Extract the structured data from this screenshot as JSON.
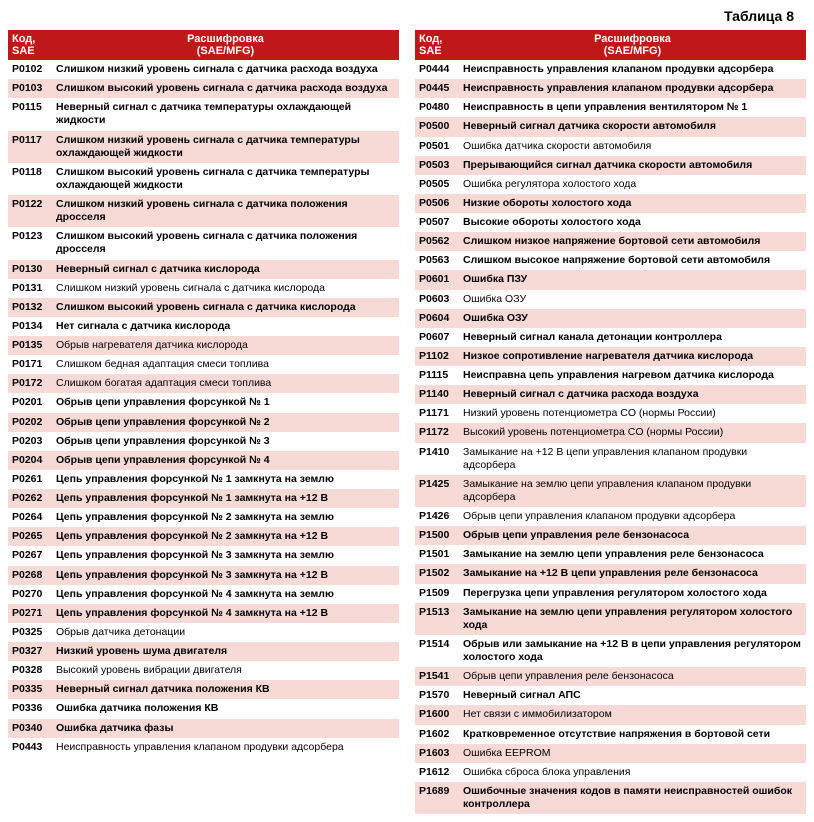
{
  "title": "Таблица 8",
  "header": {
    "code_line1": "Код,",
    "code_line2": "SAE",
    "desc_line1": "Расшифровка",
    "desc_line2": "(SAE/MFG)"
  },
  "colors": {
    "header_bg": "#c01818",
    "header_text": "#ffffff",
    "alt_bg": "#f7d9d5",
    "bg": "#ffffff"
  },
  "left": [
    {
      "code": "P0102",
      "desc": "Слишком низкий уровень сигнала с датчика расхода воздуха",
      "bold": true,
      "alt": false
    },
    {
      "code": "P0103",
      "desc": "Слишком высокий уровень сигнала с датчика расхода воздуха",
      "bold": true,
      "alt": true
    },
    {
      "code": "P0115",
      "desc": "Неверный сигнал с датчика температуры охлаждающей жидкости",
      "bold": true,
      "alt": false
    },
    {
      "code": "P0117",
      "desc": "Слишком низкий уровень сигнала с датчика температуры охлаждающей жидкости",
      "bold": true,
      "alt": true
    },
    {
      "code": "P0118",
      "desc": "Слишком высокий уровень сигнала с датчика температуры охлаждающей жидкости",
      "bold": true,
      "alt": false
    },
    {
      "code": "P0122",
      "desc": "Слишком низкий уровень сигнала с датчика положения дросселя",
      "bold": true,
      "alt": true
    },
    {
      "code": "P0123",
      "desc": "Слишком высокий уровень сигнала с датчика положения дросселя",
      "bold": true,
      "alt": false
    },
    {
      "code": "P0130",
      "desc": "Неверный сигнал с датчика кислорода",
      "bold": true,
      "alt": true
    },
    {
      "code": "P0131",
      "desc": "Слишком низкий уровень сигнала с датчика кислорода",
      "bold": false,
      "alt": false
    },
    {
      "code": "P0132",
      "desc": "Слишком высокий уровень сигнала с датчика кислорода",
      "bold": true,
      "alt": true
    },
    {
      "code": "P0134",
      "desc": "Нет сигнала с датчика кислорода",
      "bold": true,
      "alt": false
    },
    {
      "code": "P0135",
      "desc": "Обрыв нагревателя датчика кислорода",
      "bold": false,
      "alt": true
    },
    {
      "code": "P0171",
      "desc": "Слишком бедная адаптация смеси топлива",
      "bold": false,
      "alt": false
    },
    {
      "code": "P0172",
      "desc": "Слишком богатая адаптация смеси топлива",
      "bold": false,
      "alt": true
    },
    {
      "code": "P0201",
      "desc": "Обрыв цепи управления форсункой № 1",
      "bold": true,
      "alt": false
    },
    {
      "code": "P0202",
      "desc": "Обрыв цепи управления форсункой № 2",
      "bold": true,
      "alt": true
    },
    {
      "code": "P0203",
      "desc": "Обрыв цепи управления форсункой № 3",
      "bold": true,
      "alt": false
    },
    {
      "code": "P0204",
      "desc": "Обрыв цепи управления форсункой № 4",
      "bold": true,
      "alt": true
    },
    {
      "code": "P0261",
      "desc": "Цепь управления форсункой № 1 замкнута на землю",
      "bold": true,
      "alt": false
    },
    {
      "code": "P0262",
      "desc": "Цепь управления форсункой № 1 замкнута на +12 В",
      "bold": true,
      "alt": true
    },
    {
      "code": "P0264",
      "desc": "Цепь управления форсункой № 2 замкнута на землю",
      "bold": true,
      "alt": false
    },
    {
      "code": "P0265",
      "desc": "Цепь управления форсункой № 2 замкнута на +12 В",
      "bold": true,
      "alt": true
    },
    {
      "code": "P0267",
      "desc": "Цепь управления форсункой № 3 замкнута на землю",
      "bold": true,
      "alt": false
    },
    {
      "code": "P0268",
      "desc": "Цепь управления форсункой № 3 замкнута на +12 В",
      "bold": true,
      "alt": true
    },
    {
      "code": "P0270",
      "desc": "Цепь управления форсункой № 4 замкнута на землю",
      "bold": true,
      "alt": false
    },
    {
      "code": "P0271",
      "desc": "Цепь управления форсункой № 4 замкнута на +12 В",
      "bold": true,
      "alt": true
    },
    {
      "code": "P0325",
      "desc": "Обрыв датчика детонации",
      "bold": false,
      "alt": false
    },
    {
      "code": "P0327",
      "desc": "Низкий уровень шума двигателя",
      "bold": true,
      "alt": true
    },
    {
      "code": "P0328",
      "desc": "Высокий уровень вибрации двигателя",
      "bold": false,
      "alt": false
    },
    {
      "code": "P0335",
      "desc": "Неверный сигнал датчика положения КВ",
      "bold": true,
      "alt": true
    },
    {
      "code": "P0336",
      "desc": "Ошибка датчика положения КВ",
      "bold": true,
      "alt": false
    },
    {
      "code": "P0340",
      "desc": "Ошибка датчика фазы",
      "bold": true,
      "alt": true
    },
    {
      "code": "P0443",
      "desc": "Неисправность управления клапаном продувки адсорбера",
      "bold": false,
      "alt": false
    }
  ],
  "right": [
    {
      "code": "P0444",
      "desc": "Неисправность управления клапаном продувки адсорбера",
      "bold": true,
      "alt": false
    },
    {
      "code": "P0445",
      "desc": "Неисправность управления клапаном продувки адсорбера",
      "bold": true,
      "alt": true
    },
    {
      "code": "P0480",
      "desc": "Неисправность в цепи управления вентилятором № 1",
      "bold": true,
      "alt": false
    },
    {
      "code": "P0500",
      "desc": "Неверный сигнал датчика скорости автомобиля",
      "bold": true,
      "alt": true
    },
    {
      "code": "P0501",
      "desc": "Ошибка датчика скорости автомобиля",
      "bold": false,
      "alt": false
    },
    {
      "code": "P0503",
      "desc": "Прерывающийся сигнал датчика скорости автомобиля",
      "bold": true,
      "alt": true
    },
    {
      "code": "P0505",
      "desc": "Ошибка регулятора холостого хода",
      "bold": false,
      "alt": false
    },
    {
      "code": "P0506",
      "desc": "Низкие обороты холостого хода",
      "bold": true,
      "alt": true
    },
    {
      "code": "P0507",
      "desc": "Высокие обороты холостого хода",
      "bold": true,
      "alt": false
    },
    {
      "code": "P0562",
      "desc": "Слишком низкое напряжение бортовой сети автомобиля",
      "bold": true,
      "alt": true
    },
    {
      "code": "P0563",
      "desc": "Слишком высокое напряжение бортовой сети автомобиля",
      "bold": true,
      "alt": false
    },
    {
      "code": "P0601",
      "desc": "Ошибка ПЗУ",
      "bold": true,
      "alt": true
    },
    {
      "code": "P0603",
      "desc": "Ошибка ОЗУ",
      "bold": false,
      "alt": false
    },
    {
      "code": "P0604",
      "desc": "Ошибка ОЗУ",
      "bold": true,
      "alt": true
    },
    {
      "code": "P0607",
      "desc": "Неверный сигнал канала детонации контроллера",
      "bold": true,
      "alt": false
    },
    {
      "code": "P1102",
      "desc": "Низкое сопротивление нагревателя датчика кислорода",
      "bold": true,
      "alt": true
    },
    {
      "code": "P1115",
      "desc": "Неисправна цепь управления нагревом датчика кислорода",
      "bold": true,
      "alt": false
    },
    {
      "code": "P1140",
      "desc": "Неверный сигнал с датчика расхода воздуха",
      "bold": true,
      "alt": true
    },
    {
      "code": "P1171",
      "desc": "Низкий уровень потенциометра CO (нормы России)",
      "bold": false,
      "alt": false
    },
    {
      "code": "P1172",
      "desc": "Высокий уровень потенциометра CO (нормы России)",
      "bold": false,
      "alt": true
    },
    {
      "code": "P1410",
      "desc": "Замыкание на +12 В цепи управления клапаном продувки адсорбера",
      "bold": false,
      "alt": false
    },
    {
      "code": "P1425",
      "desc": "Замыкание на землю цепи управления клапаном продувки адсорбера",
      "bold": false,
      "alt": true
    },
    {
      "code": "P1426",
      "desc": "Обрыв цепи управления клапаном продувки адсорбера",
      "bold": false,
      "alt": false
    },
    {
      "code": "P1500",
      "desc": "Обрыв цепи управления реле бензонасоса",
      "bold": true,
      "alt": true
    },
    {
      "code": "P1501",
      "desc": "Замыкание на землю цепи управления реле бензонасоса",
      "bold": true,
      "alt": false
    },
    {
      "code": "P1502",
      "desc": "Замыкание на +12 В цепи управления реле бензонасоса",
      "bold": true,
      "alt": true
    },
    {
      "code": "P1509",
      "desc": "Перегрузка цепи управления регулятором холостого хода",
      "bold": true,
      "alt": false
    },
    {
      "code": "P1513",
      "desc": "Замыкание на землю цепи управления регулятором холостого хода",
      "bold": true,
      "alt": true
    },
    {
      "code": "P1514",
      "desc": "Обрыв или замыкание на +12 В в цепи управления регулятором холостого хода",
      "bold": true,
      "alt": false
    },
    {
      "code": "P1541",
      "desc": "Обрыв цепи управления реле бензонасоса",
      "bold": false,
      "alt": true
    },
    {
      "code": "P1570",
      "desc": "Неверный сигнал АПС",
      "bold": true,
      "alt": false
    },
    {
      "code": "P1600",
      "desc": "Нет связи с иммобилизатором",
      "bold": false,
      "alt": true
    },
    {
      "code": "P1602",
      "desc": "Кратковременное отсутствие напряжения в бортовой сети",
      "bold": true,
      "alt": false
    },
    {
      "code": "P1603",
      "desc": "Ошибка EEPROM",
      "bold": false,
      "alt": true
    },
    {
      "code": "P1612",
      "desc": "Ошибка сброса блока управления",
      "bold": false,
      "alt": false
    },
    {
      "code": "P1689",
      "desc": "Ошибочные значения кодов в памяти неисправностей ошибок контроллера",
      "bold": true,
      "alt": true
    }
  ]
}
